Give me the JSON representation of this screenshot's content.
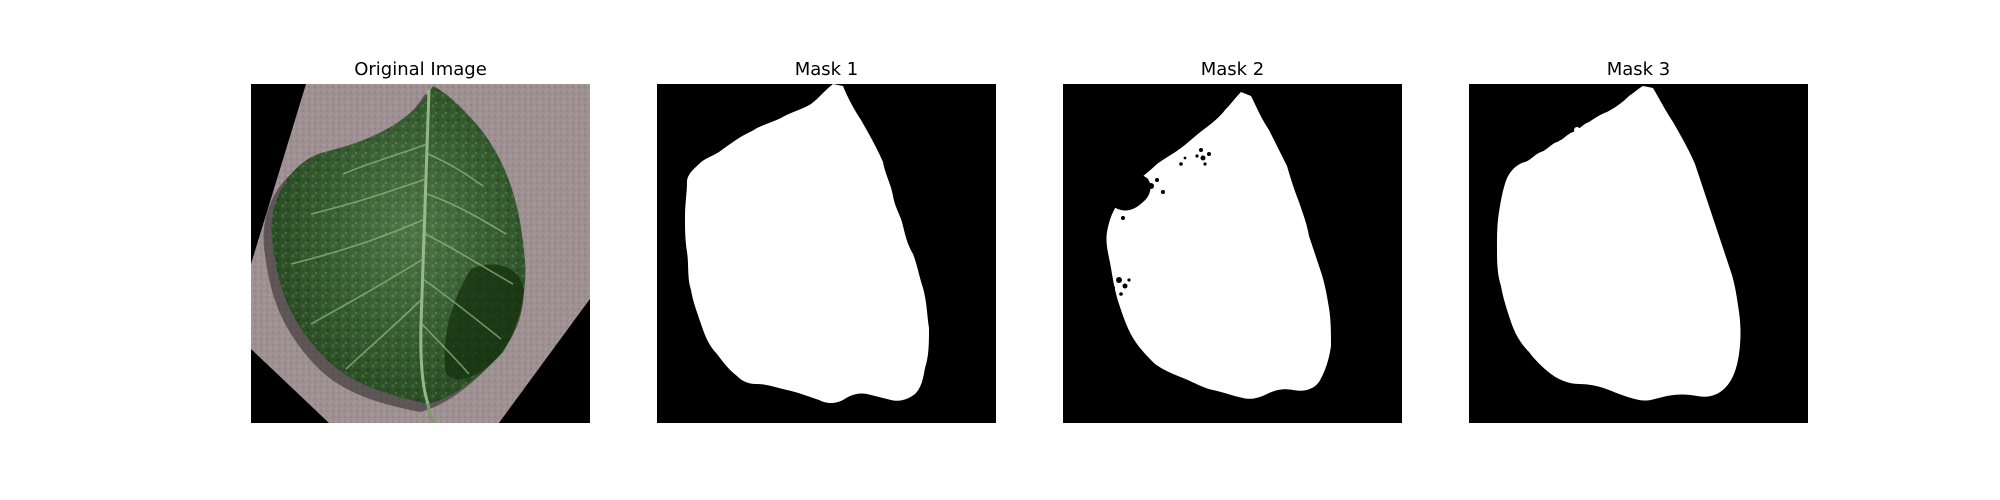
{
  "figure": {
    "panels": [
      {
        "title": "Original Image",
        "kind": "photo"
      },
      {
        "title": "Mask 1",
        "kind": "mask"
      },
      {
        "title": "Mask 2",
        "kind": "mask"
      },
      {
        "title": "Mask 3",
        "kind": "mask"
      }
    ]
  },
  "colors": {
    "background": "#000000",
    "mask": "#ffffff",
    "paper": "#9d8f91",
    "leaf_dark": "#1f3f1c",
    "leaf_mid": "#3d6a33",
    "leaf_light": "#7aa06a"
  }
}
